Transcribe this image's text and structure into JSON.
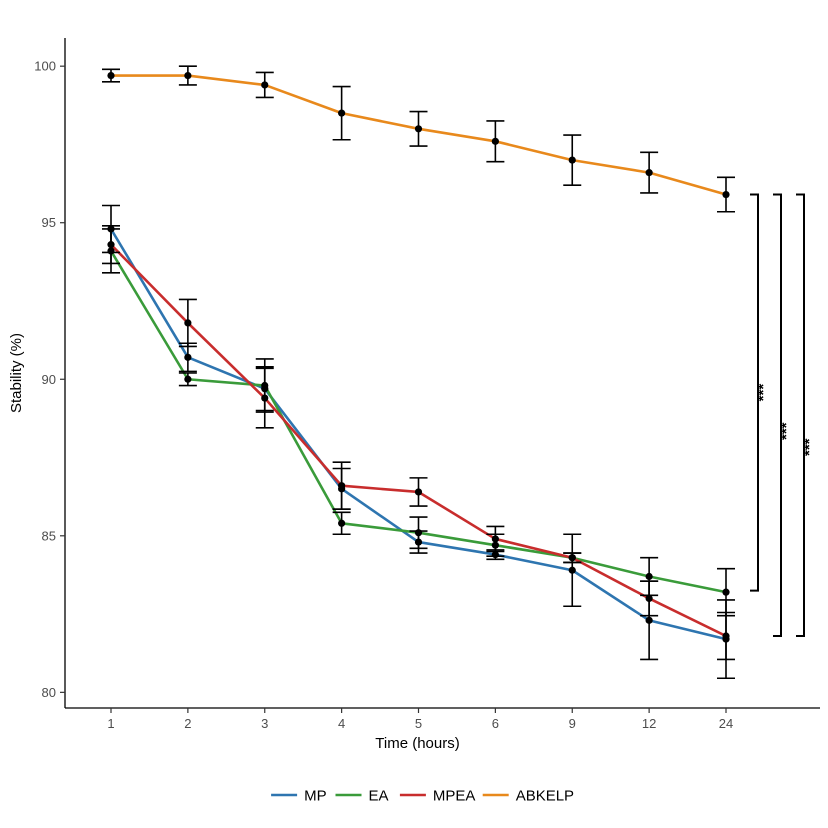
{
  "chart_data": {
    "type": "line",
    "title": "",
    "xlabel": "Time (hours)",
    "ylabel": "Stability (%)",
    "categories": [
      "1",
      "2",
      "3",
      "4",
      "5",
      "6",
      "9",
      "12",
      "24"
    ],
    "ylim": [
      79.5,
      100.9
    ],
    "yticks": [
      80,
      85,
      90,
      95,
      100
    ],
    "grid": false,
    "legend_position": "bottom",
    "series": [
      {
        "name": "MP",
        "color": "#2E75B0",
        "values": [
          94.8,
          90.7,
          89.7,
          86.5,
          84.8,
          84.4,
          83.9,
          82.3,
          81.7
        ],
        "errors": [
          0.75,
          0.45,
          0.7,
          0.65,
          0.35,
          0.15,
          1.15,
          1.25,
          1.25
        ]
      },
      {
        "name": "EA",
        "color": "#3A9B3A",
        "values": [
          94.1,
          90.0,
          89.8,
          85.4,
          85.1,
          84.7,
          84.3,
          83.7,
          83.2
        ],
        "errors": [
          0.7,
          0.2,
          0.85,
          0.35,
          0.5,
          0.35,
          0.15,
          0.6,
          0.75
        ]
      },
      {
        "name": "MPEA",
        "color": "#C82D2D",
        "values": [
          94.3,
          91.8,
          89.4,
          86.6,
          86.4,
          84.9,
          84.3,
          83.0,
          81.8
        ],
        "errors": [
          0.6,
          0.75,
          0.95,
          0.75,
          0.45,
          0.4,
          0.15,
          0.55,
          0.75
        ]
      },
      {
        "name": "ABKELP",
        "color": "#E8891C",
        "values": [
          99.7,
          99.7,
          99.4,
          98.5,
          98.0,
          97.6,
          97.0,
          96.6,
          95.9
        ],
        "errors": [
          0.2,
          0.3,
          0.4,
          0.85,
          0.55,
          0.65,
          0.8,
          0.65,
          0.55
        ]
      }
    ],
    "annotations": [
      {
        "label": "***",
        "from_series": "ABKELP",
        "to_series": "EA",
        "y_top": 95.9,
        "y_bottom": 83.25
      },
      {
        "label": "***",
        "from_series": "ABKELP",
        "to_series": "MP",
        "y_top": 95.9,
        "y_bottom": 81.8
      },
      {
        "label": "***",
        "from_series": "ABKELP",
        "to_series": "MPEA",
        "y_top": 95.9,
        "y_bottom": 81.8
      }
    ]
  }
}
